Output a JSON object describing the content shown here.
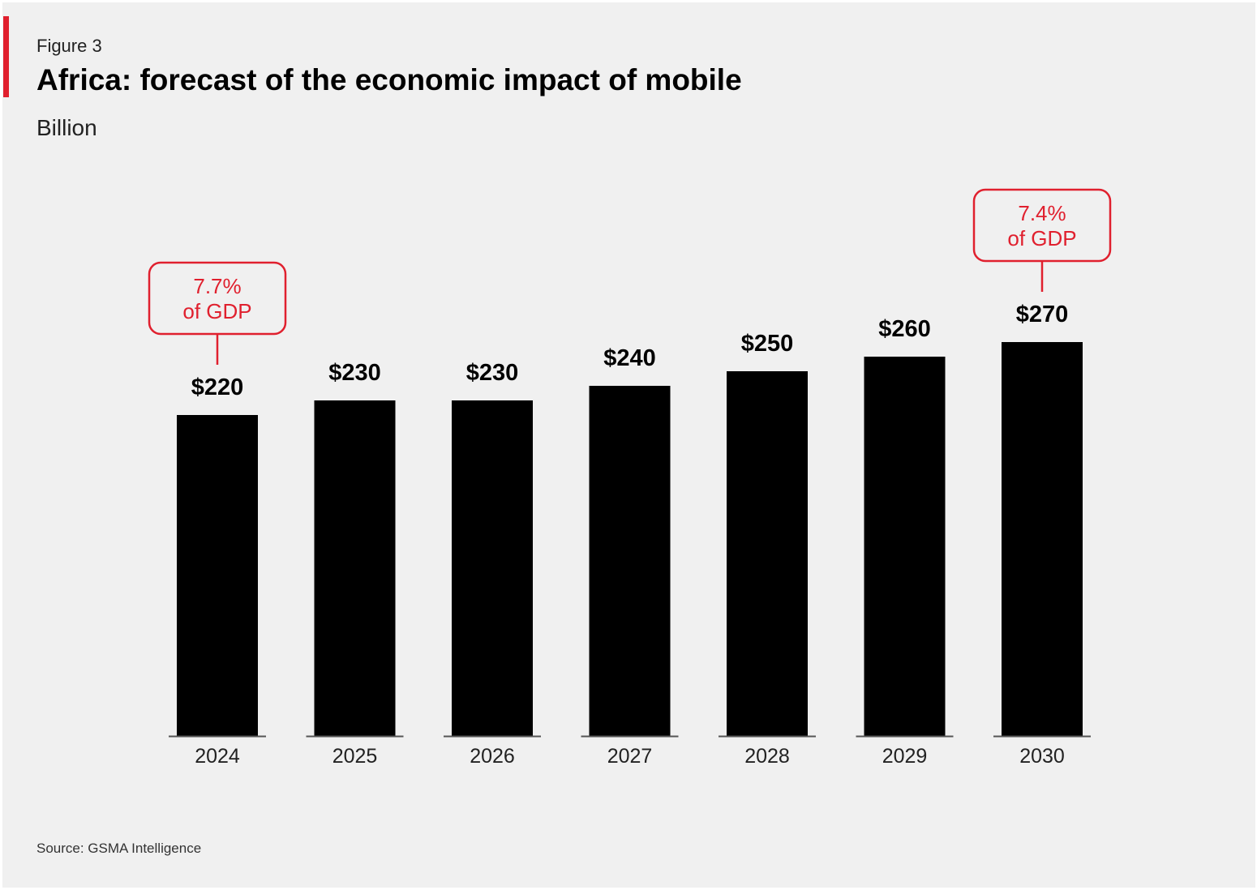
{
  "figure_label": "Figure 3",
  "source": "Source: GSMA Intelligence",
  "colors": {
    "bar": "#000000",
    "accent": "#e0202e",
    "background": "#f0f0f0"
  },
  "chart_data": {
    "type": "bar",
    "title": "Africa: forecast of the economic impact of mobile",
    "subtitle": "Billion",
    "categories": [
      "2024",
      "2025",
      "2026",
      "2027",
      "2028",
      "2029",
      "2030"
    ],
    "values": [
      220,
      230,
      230,
      240,
      250,
      260,
      270
    ],
    "data_labels": [
      "$220",
      "$230",
      "$230",
      "$240",
      "$250",
      "$260",
      "$270"
    ],
    "ylim": [
      0,
      270
    ],
    "grid": false,
    "legend": "none",
    "annotations": [
      {
        "category": "2024",
        "lines": [
          "7.7%",
          "of GDP"
        ]
      },
      {
        "category": "2030",
        "lines": [
          "7.4%",
          "of GDP"
        ]
      }
    ]
  }
}
